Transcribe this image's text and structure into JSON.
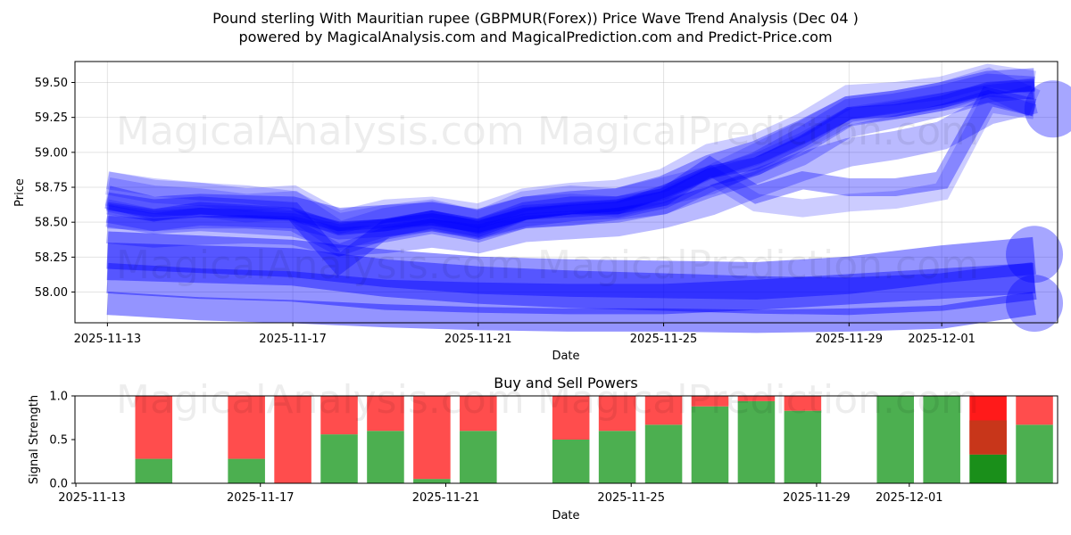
{
  "chart_data": [
    {
      "type": "line",
      "title": "Pound sterling With Mauritian rupee (GBPMUR(Forex)) Price Wave Trend Analysis (Dec 04 )",
      "subtitle": "powered by MagicalAnalysis.com and MagicalPrediction.com and Predict-Price.com",
      "xlabel": "Date",
      "ylabel": "Price",
      "x_ticks": [
        "2025-11-13",
        "2025-11-17",
        "2025-11-21",
        "2025-11-25",
        "2025-11-29",
        "2025-12-01"
      ],
      "y_ticks": [
        "58.00",
        "58.25",
        "58.50",
        "58.75",
        "59.00",
        "59.25",
        "59.50"
      ],
      "ylim": [
        57.78,
        59.65
      ],
      "xlim_days": [
        -0.7,
        20.5
      ],
      "color": "#0000ff",
      "series": [
        {
          "name": "wave-1",
          "x": [
            0,
            1,
            2,
            3,
            4,
            5,
            6,
            7,
            8,
            9,
            10,
            11,
            12,
            13,
            14,
            15,
            16,
            17,
            18,
            19,
            20
          ],
          "values": [
            58.62,
            58.55,
            58.58,
            58.57,
            58.55,
            58.46,
            58.48,
            58.52,
            58.47,
            58.56,
            58.6,
            58.62,
            58.7,
            58.85,
            58.95,
            59.1,
            59.28,
            59.33,
            59.38,
            59.45,
            59.49
          ]
        },
        {
          "name": "wave-2",
          "x": [
            0,
            1,
            2,
            3,
            4,
            5,
            6,
            7,
            8,
            9,
            10,
            11,
            12,
            13,
            14,
            15,
            16,
            17,
            18,
            19,
            20
          ],
          "values": [
            58.56,
            58.5,
            58.54,
            58.53,
            58.52,
            58.44,
            58.46,
            58.5,
            58.45,
            58.53,
            58.57,
            58.59,
            58.66,
            58.82,
            58.9,
            59.05,
            59.25,
            59.3,
            59.36,
            59.42,
            59.45
          ]
        },
        {
          "name": "wave-3",
          "x": [
            0,
            1,
            2,
            3,
            4,
            5,
            6,
            7,
            8,
            9,
            10,
            11,
            12,
            13,
            14,
            15,
            16,
            17,
            18,
            19,
            20
          ],
          "values": [
            58.68,
            58.6,
            58.62,
            58.61,
            58.6,
            58.52,
            58.54,
            58.56,
            58.51,
            58.6,
            58.64,
            58.66,
            58.75,
            58.9,
            59.0,
            59.15,
            59.32,
            59.36,
            59.42,
            59.5,
            59.52
          ]
        },
        {
          "name": "wave-4",
          "x": [
            0,
            1,
            2,
            3,
            4,
            5,
            6,
            7,
            8,
            9,
            10,
            11,
            12,
            13,
            14,
            15,
            16,
            17,
            18,
            19,
            20
          ],
          "values": [
            58.72,
            58.66,
            58.64,
            58.6,
            58.62,
            58.4,
            58.5,
            58.55,
            58.48,
            58.62,
            58.66,
            58.64,
            58.72,
            58.8,
            58.96,
            59.12,
            59.3,
            59.34,
            59.4,
            59.5,
            59.35
          ]
        },
        {
          "name": "wave-5",
          "x": [
            0,
            1,
            2,
            3,
            4,
            5,
            6,
            7,
            8,
            9,
            10,
            11,
            12,
            13,
            14,
            15,
            16,
            17,
            18,
            19,
            20
          ],
          "values": [
            58.5,
            58.48,
            58.5,
            58.5,
            58.48,
            58.3,
            58.42,
            58.48,
            58.42,
            58.5,
            58.52,
            58.56,
            58.6,
            58.72,
            58.82,
            58.95,
            59.15,
            59.22,
            59.3,
            59.4,
            59.3
          ]
        },
        {
          "name": "wave-6",
          "x": [
            0,
            1,
            2,
            3,
            4,
            5,
            6,
            7,
            8,
            9,
            10,
            11,
            12,
            13,
            14,
            15,
            16,
            17,
            18,
            19,
            20
          ],
          "values": [
            58.65,
            58.6,
            58.62,
            58.6,
            58.58,
            58.2,
            58.45,
            58.52,
            58.46,
            58.58,
            58.62,
            58.62,
            58.68,
            58.9,
            58.7,
            58.8,
            58.75,
            58.75,
            58.8,
            59.4,
            59.32
          ]
        },
        {
          "name": "wave-7",
          "x": [
            0,
            1,
            2,
            3,
            4,
            5,
            6,
            7,
            8,
            9,
            10,
            11,
            12,
            13,
            14,
            15,
            16,
            17,
            18,
            19,
            20
          ],
          "values": [
            58.78,
            58.72,
            58.7,
            58.66,
            58.68,
            58.5,
            58.58,
            58.6,
            58.55,
            58.66,
            58.7,
            58.72,
            58.8,
            58.98,
            59.05,
            59.2,
            59.4,
            59.42,
            59.46,
            59.55,
            59.5
          ]
        },
        {
          "name": "wave-8",
          "x": [
            0,
            1,
            2,
            3,
            4,
            5,
            6,
            7,
            8,
            9,
            10,
            11,
            12,
            13,
            14,
            15,
            16,
            17,
            18,
            19,
            20
          ],
          "values": [
            58.45,
            58.42,
            58.44,
            58.45,
            58.44,
            58.36,
            58.38,
            58.42,
            58.38,
            58.46,
            58.48,
            58.5,
            58.56,
            58.65,
            58.78,
            58.9,
            59.0,
            59.05,
            59.12,
            59.3,
            59.38
          ]
        },
        {
          "name": "wave-9",
          "x": [
            0,
            1,
            2,
            3,
            4,
            5,
            6,
            7,
            8,
            9,
            10,
            11,
            12,
            13,
            14,
            15,
            16,
            17,
            18,
            19,
            20
          ],
          "values": [
            58.6,
            58.55,
            58.6,
            58.58,
            58.56,
            58.45,
            58.48,
            58.54,
            58.46,
            58.56,
            58.58,
            58.6,
            58.72,
            58.86,
            58.92,
            59.08,
            59.28,
            59.3,
            59.36,
            59.46,
            59.48
          ]
        },
        {
          "name": "wave-10",
          "x": [
            0,
            1,
            2,
            3,
            4,
            5,
            6,
            7,
            8,
            9,
            10,
            11,
            12,
            13,
            14,
            15,
            16,
            17,
            18,
            19,
            20
          ],
          "values": [
            58.8,
            58.75,
            58.72,
            58.7,
            58.66,
            58.5,
            58.56,
            58.6,
            58.52,
            58.62,
            58.64,
            58.62,
            58.7,
            58.84,
            58.64,
            58.6,
            58.64,
            58.66,
            58.72,
            59.35,
            59.3
          ]
        },
        {
          "name": "wave-11",
          "x": [
            0,
            1,
            2,
            3,
            4,
            5,
            6,
            7,
            8,
            9,
            10,
            11,
            12,
            13,
            14,
            15,
            16,
            17,
            18,
            19,
            20
          ],
          "values": [
            58.55,
            58.5,
            58.52,
            58.5,
            58.48,
            58.4,
            58.44,
            58.5,
            58.44,
            58.54,
            58.56,
            58.58,
            58.64,
            58.8,
            58.92,
            59.1,
            59.3,
            59.34,
            59.4,
            59.48,
            59.46
          ]
        },
        {
          "name": "lower-wave-1",
          "x": [
            0,
            2,
            4,
            6,
            8,
            10,
            12,
            14,
            16,
            18,
            20
          ],
          "values": [
            58.3,
            58.27,
            58.24,
            58.17,
            58.12,
            58.1,
            58.09,
            58.08,
            58.12,
            58.2,
            58.26
          ]
        },
        {
          "name": "lower-wave-2",
          "x": [
            0,
            2,
            4,
            6,
            8,
            10,
            12,
            14,
            16,
            18,
            20
          ],
          "values": [
            57.92,
            57.88,
            57.86,
            57.83,
            57.81,
            57.8,
            57.8,
            57.79,
            57.8,
            57.82,
            57.92
          ]
        },
        {
          "name": "lower-wave-3",
          "x": [
            0,
            2,
            4,
            6,
            8,
            10,
            12,
            14,
            16,
            18,
            20
          ],
          "values": [
            58.1,
            58.06,
            58.04,
            57.98,
            57.96,
            57.95,
            57.95,
            57.98,
            58.02,
            58.06,
            58.1
          ]
        },
        {
          "name": "lower-wave-4",
          "x": [
            0,
            2,
            4,
            6,
            8,
            10,
            12,
            14,
            16,
            18,
            20
          ],
          "values": [
            58.22,
            58.2,
            58.18,
            58.1,
            58.05,
            58.02,
            58.0,
            57.98,
            57.97,
            58.0,
            58.08
          ]
        }
      ],
      "endpoints": [
        {
          "name": "upper-end",
          "x": 20.4,
          "value": 59.31
        },
        {
          "name": "lower-end-high",
          "x": 20.0,
          "value": 58.27
        },
        {
          "name": "lower-end-low",
          "x": 20.0,
          "value": 57.92
        }
      ]
    },
    {
      "type": "bar",
      "title": "Buy and Sell Powers",
      "xlabel": "Date",
      "ylabel": "Signal Strength",
      "x_ticks": [
        "2025-11-13",
        "2025-11-17",
        "2025-11-21",
        "2025-11-25",
        "2025-11-29",
        "2025-12-01"
      ],
      "y_ticks": [
        "0.0",
        "0.5",
        "1.0"
      ],
      "ylim": [
        0,
        1
      ],
      "xlim_days": [
        -0.7,
        20.5
      ],
      "colors": {
        "buy": "#4caf50",
        "sell": "#ff4d4d",
        "buy_strong": "#1a8f1a",
        "sell_strong": "#ff1a1a",
        "mixed": "#c8361a"
      },
      "days": [
        1,
        3,
        4,
        5,
        6,
        7,
        8,
        10,
        11,
        12,
        13,
        14,
        15,
        17,
        18,
        19,
        20
      ],
      "buy": [
        0.28,
        0.28,
        0.0,
        0.56,
        0.6,
        0.05,
        0.6,
        0.5,
        0.6,
        0.67,
        0.88,
        0.94,
        0.83,
        1.0,
        1.0,
        0.33,
        0.67
      ],
      "sell": [
        0.72,
        0.72,
        1.0,
        0.44,
        0.4,
        0.95,
        0.4,
        0.5,
        0.4,
        0.33,
        0.12,
        0.06,
        0.17,
        0.0,
        0.0,
        0.67,
        0.33
      ]
    }
  ],
  "watermarks": [
    "MagicalAnalysis.com",
    "MagicalPrediction.com"
  ]
}
